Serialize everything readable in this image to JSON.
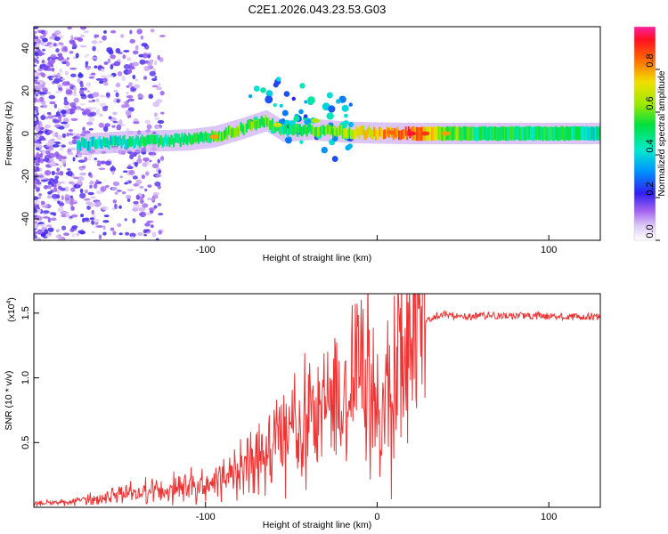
{
  "title": "C2E1.2026.043.23.53.G03",
  "chart_data": [
    {
      "type": "heatmap",
      "xlabel": "Height of straight line (km)",
      "ylabel": "Frequency (Hz)",
      "xlim": [
        -200,
        130
      ],
      "ylim": [
        -50,
        50
      ],
      "x_ticks": [
        -100,
        0,
        100
      ],
      "x_tick_labels": [
        "-100",
        "",
        "100"
      ],
      "y_ticks": [
        -40,
        -20,
        0,
        20,
        40
      ],
      "y_tick_labels": [
        "-40",
        "-20",
        "0",
        "20",
        "40"
      ],
      "colorbar": {
        "label": "Normalized spectral amplitude",
        "range": [
          0,
          1
        ],
        "ticks": [
          0.0,
          0.2,
          0.4,
          0.6,
          0.8
        ],
        "tick_labels": [
          "0.0",
          "0.2",
          "0.4",
          "0.6",
          "0.8"
        ]
      },
      "ridge": {
        "x": [
          -170,
          -150,
          -130,
          -110,
          -95,
          -80,
          -65,
          -55,
          -40,
          -25,
          -15,
          0,
          20,
          40,
          60,
          80,
          100,
          130
        ],
        "frequency": [
          -5,
          -4,
          -3.5,
          -3,
          -1.5,
          2,
          6,
          1,
          2,
          1,
          0.5,
          0.2,
          0,
          0,
          0,
          0,
          0,
          0
        ],
        "amplitude": [
          0.4,
          0.45,
          0.5,
          0.5,
          0.55,
          0.6,
          0.55,
          0.5,
          0.55,
          0.6,
          0.65,
          0.75,
          0.9,
          0.6,
          0.5,
          0.5,
          0.5,
          0.45
        ]
      }
    },
    {
      "type": "line",
      "xlabel": "Height of straight line (km)",
      "ylabel": "SNR (10 * v/v)",
      "y_multiplier": "(x10",
      "y_multiplier_exp": "4",
      "y_multiplier_close": ")",
      "xlim": [
        -200,
        130
      ],
      "ylim": [
        0,
        16500
      ],
      "x_ticks": [
        -100,
        0,
        100
      ],
      "x_tick_labels": [
        "-100",
        "0",
        "100"
      ],
      "y_ticks": [
        5000,
        10000,
        15000
      ],
      "y_tick_labels": [
        "0.5",
        "1.0",
        "1.5"
      ],
      "color": "#ee3333",
      "series": [
        {
          "name": "SNR",
          "x": [
            -200,
            -180,
            -160,
            -150,
            -140,
            -120,
            -100,
            -90,
            -80,
            -70,
            -60,
            -50,
            -40,
            -30,
            -20,
            -15,
            -10,
            -5,
            0,
            5,
            10,
            15,
            20,
            25,
            30,
            35,
            40,
            50,
            60,
            80,
            100,
            120,
            130
          ],
          "y": [
            300,
            400,
            700,
            1000,
            1100,
            1400,
            1800,
            2400,
            3200,
            3800,
            4500,
            5400,
            6400,
            7400,
            8500,
            9800,
            11000,
            9500,
            7000,
            9000,
            10000,
            11500,
            13000,
            14000,
            14500,
            14800,
            14900,
            14700,
            14800,
            14800,
            14800,
            14700,
            14800
          ]
        }
      ]
    }
  ]
}
